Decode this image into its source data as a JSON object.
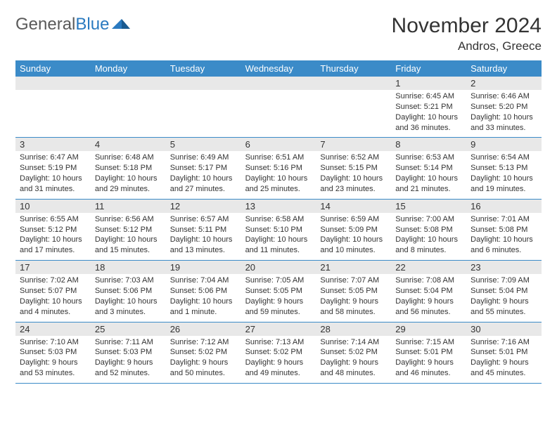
{
  "branding": {
    "logo_text_1": "General",
    "logo_text_2": "Blue",
    "logo_gray_color": "#5a5a5a",
    "logo_blue_color": "#2a7ac0"
  },
  "header": {
    "title": "November 2024",
    "location": "Andros, Greece"
  },
  "colors": {
    "header_bar": "#3b8bc8",
    "daynum_bg": "#e8e8e8",
    "week_border": "#3b8bc8",
    "text": "#333333",
    "weekday_text": "#ffffff",
    "background": "#ffffff"
  },
  "typography": {
    "title_fontsize": 30,
    "location_fontsize": 17,
    "weekday_fontsize": 13,
    "cell_fontsize": 11
  },
  "weekdays": [
    "Sunday",
    "Monday",
    "Tuesday",
    "Wednesday",
    "Thursday",
    "Friday",
    "Saturday"
  ],
  "weeks": [
    {
      "nums": [
        "",
        "",
        "",
        "",
        "",
        "1",
        "2"
      ],
      "cells": [
        {
          "sunrise": "",
          "sunset": "",
          "daylight1": "",
          "daylight2": ""
        },
        {
          "sunrise": "",
          "sunset": "",
          "daylight1": "",
          "daylight2": ""
        },
        {
          "sunrise": "",
          "sunset": "",
          "daylight1": "",
          "daylight2": ""
        },
        {
          "sunrise": "",
          "sunset": "",
          "daylight1": "",
          "daylight2": ""
        },
        {
          "sunrise": "",
          "sunset": "",
          "daylight1": "",
          "daylight2": ""
        },
        {
          "sunrise": "Sunrise: 6:45 AM",
          "sunset": "Sunset: 5:21 PM",
          "daylight1": "Daylight: 10 hours",
          "daylight2": "and 36 minutes."
        },
        {
          "sunrise": "Sunrise: 6:46 AM",
          "sunset": "Sunset: 5:20 PM",
          "daylight1": "Daylight: 10 hours",
          "daylight2": "and 33 minutes."
        }
      ]
    },
    {
      "nums": [
        "3",
        "4",
        "5",
        "6",
        "7",
        "8",
        "9"
      ],
      "cells": [
        {
          "sunrise": "Sunrise: 6:47 AM",
          "sunset": "Sunset: 5:19 PM",
          "daylight1": "Daylight: 10 hours",
          "daylight2": "and 31 minutes."
        },
        {
          "sunrise": "Sunrise: 6:48 AM",
          "sunset": "Sunset: 5:18 PM",
          "daylight1": "Daylight: 10 hours",
          "daylight2": "and 29 minutes."
        },
        {
          "sunrise": "Sunrise: 6:49 AM",
          "sunset": "Sunset: 5:17 PM",
          "daylight1": "Daylight: 10 hours",
          "daylight2": "and 27 minutes."
        },
        {
          "sunrise": "Sunrise: 6:51 AM",
          "sunset": "Sunset: 5:16 PM",
          "daylight1": "Daylight: 10 hours",
          "daylight2": "and 25 minutes."
        },
        {
          "sunrise": "Sunrise: 6:52 AM",
          "sunset": "Sunset: 5:15 PM",
          "daylight1": "Daylight: 10 hours",
          "daylight2": "and 23 minutes."
        },
        {
          "sunrise": "Sunrise: 6:53 AM",
          "sunset": "Sunset: 5:14 PM",
          "daylight1": "Daylight: 10 hours",
          "daylight2": "and 21 minutes."
        },
        {
          "sunrise": "Sunrise: 6:54 AM",
          "sunset": "Sunset: 5:13 PM",
          "daylight1": "Daylight: 10 hours",
          "daylight2": "and 19 minutes."
        }
      ]
    },
    {
      "nums": [
        "10",
        "11",
        "12",
        "13",
        "14",
        "15",
        "16"
      ],
      "cells": [
        {
          "sunrise": "Sunrise: 6:55 AM",
          "sunset": "Sunset: 5:12 PM",
          "daylight1": "Daylight: 10 hours",
          "daylight2": "and 17 minutes."
        },
        {
          "sunrise": "Sunrise: 6:56 AM",
          "sunset": "Sunset: 5:12 PM",
          "daylight1": "Daylight: 10 hours",
          "daylight2": "and 15 minutes."
        },
        {
          "sunrise": "Sunrise: 6:57 AM",
          "sunset": "Sunset: 5:11 PM",
          "daylight1": "Daylight: 10 hours",
          "daylight2": "and 13 minutes."
        },
        {
          "sunrise": "Sunrise: 6:58 AM",
          "sunset": "Sunset: 5:10 PM",
          "daylight1": "Daylight: 10 hours",
          "daylight2": "and 11 minutes."
        },
        {
          "sunrise": "Sunrise: 6:59 AM",
          "sunset": "Sunset: 5:09 PM",
          "daylight1": "Daylight: 10 hours",
          "daylight2": "and 10 minutes."
        },
        {
          "sunrise": "Sunrise: 7:00 AM",
          "sunset": "Sunset: 5:08 PM",
          "daylight1": "Daylight: 10 hours",
          "daylight2": "and 8 minutes."
        },
        {
          "sunrise": "Sunrise: 7:01 AM",
          "sunset": "Sunset: 5:08 PM",
          "daylight1": "Daylight: 10 hours",
          "daylight2": "and 6 minutes."
        }
      ]
    },
    {
      "nums": [
        "17",
        "18",
        "19",
        "20",
        "21",
        "22",
        "23"
      ],
      "cells": [
        {
          "sunrise": "Sunrise: 7:02 AM",
          "sunset": "Sunset: 5:07 PM",
          "daylight1": "Daylight: 10 hours",
          "daylight2": "and 4 minutes."
        },
        {
          "sunrise": "Sunrise: 7:03 AM",
          "sunset": "Sunset: 5:06 PM",
          "daylight1": "Daylight: 10 hours",
          "daylight2": "and 3 minutes."
        },
        {
          "sunrise": "Sunrise: 7:04 AM",
          "sunset": "Sunset: 5:06 PM",
          "daylight1": "Daylight: 10 hours",
          "daylight2": "and 1 minute."
        },
        {
          "sunrise": "Sunrise: 7:05 AM",
          "sunset": "Sunset: 5:05 PM",
          "daylight1": "Daylight: 9 hours",
          "daylight2": "and 59 minutes."
        },
        {
          "sunrise": "Sunrise: 7:07 AM",
          "sunset": "Sunset: 5:05 PM",
          "daylight1": "Daylight: 9 hours",
          "daylight2": "and 58 minutes."
        },
        {
          "sunrise": "Sunrise: 7:08 AM",
          "sunset": "Sunset: 5:04 PM",
          "daylight1": "Daylight: 9 hours",
          "daylight2": "and 56 minutes."
        },
        {
          "sunrise": "Sunrise: 7:09 AM",
          "sunset": "Sunset: 5:04 PM",
          "daylight1": "Daylight: 9 hours",
          "daylight2": "and 55 minutes."
        }
      ]
    },
    {
      "nums": [
        "24",
        "25",
        "26",
        "27",
        "28",
        "29",
        "30"
      ],
      "cells": [
        {
          "sunrise": "Sunrise: 7:10 AM",
          "sunset": "Sunset: 5:03 PM",
          "daylight1": "Daylight: 9 hours",
          "daylight2": "and 53 minutes."
        },
        {
          "sunrise": "Sunrise: 7:11 AM",
          "sunset": "Sunset: 5:03 PM",
          "daylight1": "Daylight: 9 hours",
          "daylight2": "and 52 minutes."
        },
        {
          "sunrise": "Sunrise: 7:12 AM",
          "sunset": "Sunset: 5:02 PM",
          "daylight1": "Daylight: 9 hours",
          "daylight2": "and 50 minutes."
        },
        {
          "sunrise": "Sunrise: 7:13 AM",
          "sunset": "Sunset: 5:02 PM",
          "daylight1": "Daylight: 9 hours",
          "daylight2": "and 49 minutes."
        },
        {
          "sunrise": "Sunrise: 7:14 AM",
          "sunset": "Sunset: 5:02 PM",
          "daylight1": "Daylight: 9 hours",
          "daylight2": "and 48 minutes."
        },
        {
          "sunrise": "Sunrise: 7:15 AM",
          "sunset": "Sunset: 5:01 PM",
          "daylight1": "Daylight: 9 hours",
          "daylight2": "and 46 minutes."
        },
        {
          "sunrise": "Sunrise: 7:16 AM",
          "sunset": "Sunset: 5:01 PM",
          "daylight1": "Daylight: 9 hours",
          "daylight2": "and 45 minutes."
        }
      ]
    }
  ]
}
